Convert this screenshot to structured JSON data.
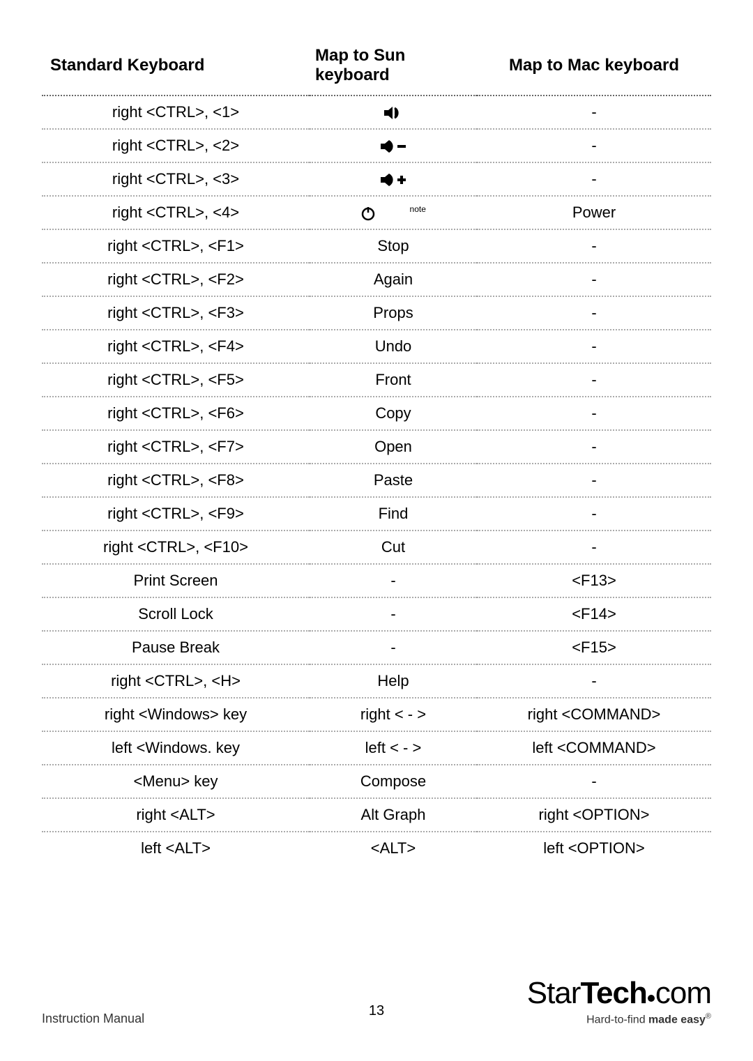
{
  "table": {
    "headers": {
      "standard": "Standard Keyboard",
      "sun": "Map to Sun keyboard",
      "mac": "Map to Mac keyboard"
    },
    "header_font_size": 24,
    "body_font_size": 22,
    "border_color_header": "#666666",
    "border_color_body": "#aaaaaa",
    "border_style": "dotted",
    "rows": [
      {
        "standard": "right <CTRL>, <1>",
        "sun_icon": "mute",
        "sun": "",
        "mac": "-"
      },
      {
        "standard": "right <CTRL>, <2>",
        "sun_icon": "vol-down",
        "sun": "",
        "mac": "-"
      },
      {
        "standard": "right <CTRL>, <3>",
        "sun_icon": "vol-up",
        "sun": "",
        "mac": "-"
      },
      {
        "standard": "right <CTRL>, <4>",
        "sun_icon": "power-moon",
        "sun": "",
        "sun_note": "note",
        "mac": "Power"
      },
      {
        "standard": "right <CTRL>, <F1>",
        "sun": "Stop",
        "mac": "-"
      },
      {
        "standard": "right <CTRL>, <F2>",
        "sun": "Again",
        "mac": "-"
      },
      {
        "standard": "right <CTRL>, <F3>",
        "sun": "Props",
        "mac": "-"
      },
      {
        "standard": "right <CTRL>, <F4>",
        "sun": "Undo",
        "mac": "-"
      },
      {
        "standard": "right <CTRL>, <F5>",
        "sun": "Front",
        "mac": "-"
      },
      {
        "standard": "right <CTRL>, <F6>",
        "sun": "Copy",
        "mac": "-"
      },
      {
        "standard": "right <CTRL>, <F7>",
        "sun": "Open",
        "mac": "-"
      },
      {
        "standard": "right <CTRL>, <F8>",
        "sun": "Paste",
        "mac": "-"
      },
      {
        "standard": "right <CTRL>, <F9>",
        "sun": "Find",
        "mac": "-"
      },
      {
        "standard": "right <CTRL>, <F10>",
        "sun": "Cut",
        "mac": "-"
      },
      {
        "standard": "Print Screen",
        "sun": "-",
        "mac": "<F13>"
      },
      {
        "standard": "Scroll Lock",
        "sun": "-",
        "mac": "<F14>"
      },
      {
        "standard": "Pause Break",
        "sun": "-",
        "mac": "<F15>"
      },
      {
        "standard": "right <CTRL>, <H>",
        "sun": "Help",
        "mac": "-"
      },
      {
        "standard": "right <Windows> key",
        "sun": "right < - >",
        "mac": "right <COMMAND>"
      },
      {
        "standard": "left <Windows. key",
        "sun": "left < - >",
        "mac": "left <COMMAND>"
      },
      {
        "standard": "<Menu> key",
        "sun": "Compose",
        "mac": "-"
      },
      {
        "standard": "right <ALT>",
        "sun": "Alt Graph",
        "mac": "right <OPTION>"
      },
      {
        "standard": "left <ALT>",
        "sun": "<ALT>",
        "mac": "left <OPTION>"
      }
    ]
  },
  "footer": {
    "left": "Instruction Manual",
    "page_number": "13",
    "brand_part1": "Star",
    "brand_part2": "Tech",
    "brand_part3": "com",
    "tagline_part1": "Hard-to-find ",
    "tagline_part2": "made easy",
    "tagline_reg": "®"
  },
  "colors": {
    "text": "#000000",
    "background": "#ffffff",
    "footer_text": "#333333"
  },
  "icons": {
    "mute": "speaker-mute",
    "vol-down": "speaker-minus",
    "vol-up": "speaker-plus",
    "power-moon": "power-and-moon"
  }
}
